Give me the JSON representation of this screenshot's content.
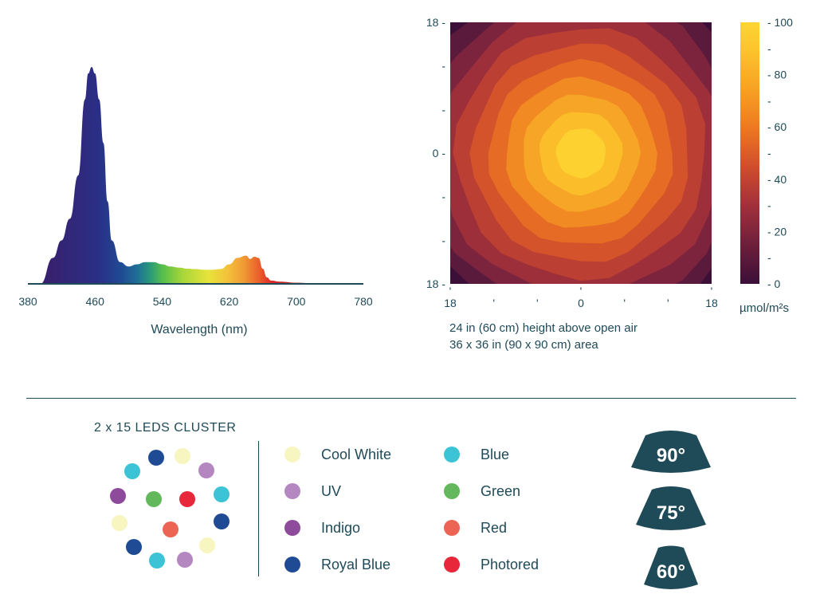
{
  "spectrum": {
    "xlabel": "Wavelength (nm)",
    "xticks": [
      "380",
      "460",
      "540",
      "620",
      "700",
      "780"
    ]
  },
  "ppfd": {
    "y_ticks": [
      {
        "label": "18",
        "pos": 18
      },
      {
        "label": "-",
        "pos": 12
      },
      {
        "label": "-",
        "pos": 6
      },
      {
        "label": "0",
        "pos": 0
      },
      {
        "label": "-",
        "pos": -6
      },
      {
        "label": "-",
        "pos": -12
      },
      {
        "label": "18",
        "pos": -18
      }
    ],
    "x_ticks": [
      {
        "label": "18",
        "pos": -18
      },
      {
        "label": "'",
        "pos": -12
      },
      {
        "label": "'",
        "pos": -6
      },
      {
        "label": "0",
        "pos": 0
      },
      {
        "label": "'",
        "pos": 6
      },
      {
        "label": "'",
        "pos": 12
      },
      {
        "label": "18",
        "pos": 18
      }
    ],
    "colorbar_ticks": [
      {
        "label": "- 100",
        "value": 100
      },
      {
        "label": "-",
        "value": 90
      },
      {
        "label": "- 80",
        "value": 80
      },
      {
        "label": "-",
        "value": 70
      },
      {
        "label": "- 60",
        "value": 60
      },
      {
        "label": "-",
        "value": 50
      },
      {
        "label": "- 40",
        "value": 40
      },
      {
        "label": "-",
        "value": 30
      },
      {
        "label": "- 20",
        "value": 20
      },
      {
        "label": "-",
        "value": 10
      },
      {
        "label": "- 0",
        "value": 0
      }
    ],
    "unit": "µmol/m²s",
    "caption_line1": "24 in (60 cm) height above open air",
    "caption_line2": "36 x 36 in (90 x 90 cm) area"
  },
  "cluster": {
    "title": "2 x 15 LEDS CLUSTER"
  },
  "legend": [
    {
      "label": "Cool White",
      "color": "#f7f5c0"
    },
    {
      "label": "UV",
      "color": "#b487c1"
    },
    {
      "label": "Indigo",
      "color": "#8e4a9b"
    },
    {
      "label": "Royal Blue",
      "color": "#1f4a94"
    },
    {
      "label": "Blue",
      "color": "#3cc3d6"
    },
    {
      "label": "Green",
      "color": "#62b85a"
    },
    {
      "label": "Red",
      "color": "#ec6554"
    },
    {
      "label": "Photored",
      "color": "#e8283a"
    }
  ],
  "beam_angles": [
    "90°",
    "75°",
    "60°"
  ],
  "chart_data": [
    {
      "type": "area",
      "xlabel": "Wavelength (nm)",
      "xlim": [
        380,
        780
      ],
      "x": [
        395,
        410,
        420,
        430,
        440,
        448,
        452,
        456,
        460,
        465,
        470,
        475,
        480,
        490,
        500,
        510,
        520,
        530,
        540,
        550,
        560,
        570,
        580,
        590,
        600,
        610,
        620,
        630,
        640,
        645,
        650,
        655,
        660,
        665,
        670,
        680,
        700,
        720,
        760,
        780
      ],
      "y": [
        0,
        12,
        20,
        30,
        50,
        85,
        97,
        100,
        97,
        85,
        65,
        38,
        20,
        10,
        8,
        9,
        10,
        10,
        9,
        8,
        7.5,
        7,
        6.8,
        6.5,
        6.5,
        6.8,
        9,
        12,
        13,
        11.5,
        12.5,
        12,
        7,
        3,
        1.5,
        1,
        0.5,
        0.3,
        0.1,
        0
      ]
    },
    {
      "type": "heatmap",
      "title": "",
      "xlim": [
        -18,
        18
      ],
      "ylim": [
        -18,
        18
      ],
      "colorbar_range": [
        0,
        100
      ],
      "colorbar_label": "µmol/m²s",
      "center_value": 100,
      "edge_midpoint_value": 40,
      "corner_value": 5,
      "levels": [
        0,
        10,
        20,
        30,
        40,
        50,
        60,
        70,
        80,
        90,
        100
      ]
    }
  ]
}
